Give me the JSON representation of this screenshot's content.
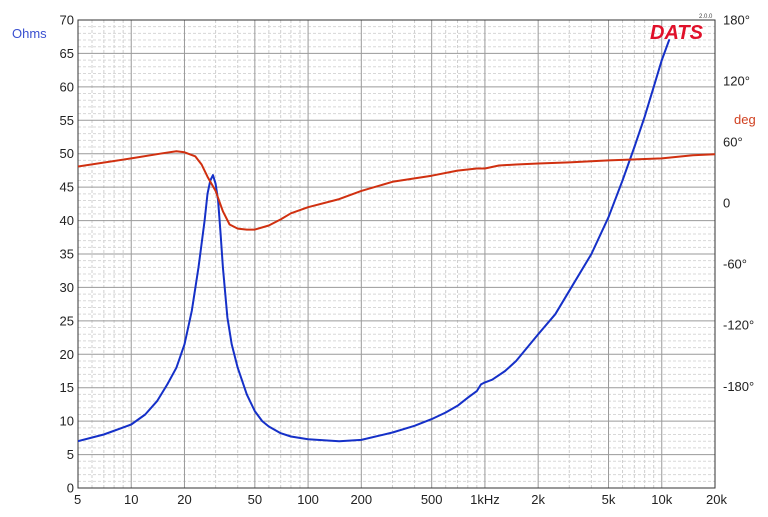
{
  "chart_data": {
    "type": "line",
    "title": "",
    "logo": "DATS",
    "version": "2.0.0",
    "x_scale": "log",
    "xlim": [
      5,
      20000
    ],
    "x_ticks": [
      {
        "value": 5,
        "label": "5"
      },
      {
        "value": 10,
        "label": "10"
      },
      {
        "value": 20,
        "label": "20"
      },
      {
        "value": 50,
        "label": "50"
      },
      {
        "value": 100,
        "label": "100"
      },
      {
        "value": 200,
        "label": "200"
      },
      {
        "value": 500,
        "label": "500"
      },
      {
        "value": 1000,
        "label": "1kHz"
      },
      {
        "value": 2000,
        "label": "2k"
      },
      {
        "value": 5000,
        "label": "5k"
      },
      {
        "value": 10000,
        "label": "10k"
      },
      {
        "value": 20000,
        "label": "20k"
      }
    ],
    "y_left": {
      "label": "Ohms",
      "ylim": [
        0,
        70
      ],
      "ticks": [
        0,
        5,
        10,
        15,
        20,
        25,
        30,
        35,
        40,
        45,
        50,
        55,
        60,
        65,
        70
      ]
    },
    "y_right": {
      "unit_label": "deg",
      "ylim": [
        -280,
        180
      ],
      "ticks": [
        {
          "value": 180,
          "label": "180°"
        },
        {
          "value": 120,
          "label": "120°"
        },
        {
          "value": 60,
          "label": "60°"
        },
        {
          "value": 0,
          "label": "0"
        },
        {
          "value": -60,
          "label": "-60°"
        },
        {
          "value": -120,
          "label": "-120°"
        },
        {
          "value": -180,
          "label": "-180°"
        }
      ]
    },
    "grid": true,
    "series": [
      {
        "name": "",
        "axis": "left",
        "color": "#1530c8",
        "x": [
          5,
          7,
          10,
          12,
          14,
          16,
          18,
          20,
          22,
          24,
          26,
          27,
          28,
          29,
          30,
          31,
          32,
          33,
          35,
          37,
          40,
          45,
          50,
          55,
          60,
          70,
          80,
          100,
          150,
          200,
          300,
          400,
          500,
          600,
          700,
          800,
          900,
          950,
          1000,
          1100,
          1300,
          1500,
          2000,
          2500,
          3000,
          4000,
          5000,
          6000,
          7000,
          8000,
          9000,
          10000,
          11000
        ],
        "values": [
          7.0,
          8.0,
          9.5,
          11.0,
          13.0,
          15.5,
          18.0,
          21.5,
          26.5,
          33.0,
          40.0,
          44.0,
          46.0,
          46.8,
          45.5,
          43.0,
          38.0,
          33.0,
          25.5,
          21.5,
          18.0,
          14.0,
          11.5,
          10.0,
          9.2,
          8.2,
          7.7,
          7.3,
          7.0,
          7.2,
          8.3,
          9.3,
          10.3,
          11.3,
          12.3,
          13.5,
          14.5,
          15.5,
          15.8,
          16.2,
          17.5,
          19.0,
          23.0,
          26.0,
          29.5,
          35.0,
          40.5,
          46.0,
          51.0,
          55.5,
          60.0,
          64.0,
          67.0
        ]
      },
      {
        "name": "",
        "axis": "right",
        "color": "#d03010",
        "x": [
          5,
          10,
          15,
          18,
          20,
          23,
          25,
          27,
          30,
          33,
          36,
          40,
          45,
          50,
          60,
          70,
          80,
          100,
          150,
          200,
          300,
          500,
          700,
          900,
          1000,
          1200,
          1500,
          2000,
          3000,
          5000,
          10000,
          15000,
          20000
        ],
        "values": [
          36,
          44,
          49,
          51,
          50,
          46,
          38,
          26,
          12,
          -8,
          -21,
          -25,
          -26,
          -26,
          -22,
          -16,
          -10,
          -4,
          4,
          12,
          21,
          27,
          32,
          34,
          34,
          37,
          38,
          39,
          40,
          42,
          44,
          47,
          48
        ]
      }
    ]
  }
}
